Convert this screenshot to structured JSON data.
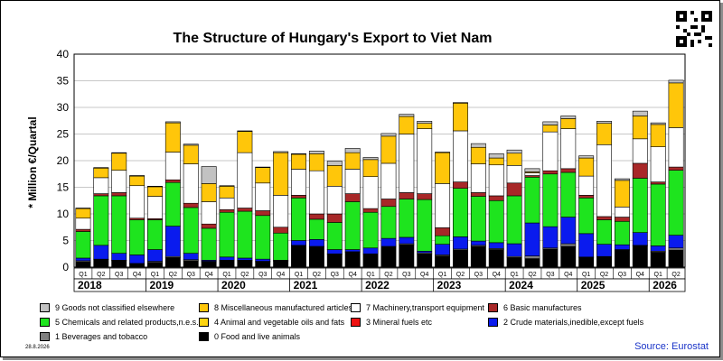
{
  "title": "The Structure of Hungary's Export to Viet Nam",
  "date_stamp": "28.8.2026",
  "source": "Source: Eurostat",
  "chart_data": {
    "type": "bar",
    "stacked": true,
    "title": "The Structure of Hungary's Export to Viet Nam",
    "ylabel": "* Million €/Quartal",
    "ylim": [
      0,
      40
    ],
    "yticks": [
      "0",
      "5",
      "10",
      "15",
      "20",
      "25",
      "30",
      "35",
      "40"
    ],
    "grid": true,
    "legend_position": "bottom",
    "quarter_labels": [
      "Q1",
      "Q2",
      "Q3",
      "Q4",
      "Q1",
      "Q2",
      "Q3",
      "Q4",
      "Q1",
      "Q2",
      "Q3",
      "Q4",
      "Q1",
      "Q2",
      "Q3",
      "Q4",
      "Q1",
      "Q2",
      "Q3",
      "Q4",
      "Q1",
      "Q2",
      "Q3",
      "Q4",
      "Q1",
      "Q2",
      "Q3",
      "Q4",
      "Q1",
      "Q2",
      "Q3",
      "Q4",
      "Q1",
      "Q2"
    ],
    "years": [
      {
        "label": "2018",
        "quarters": 4
      },
      {
        "label": "2019",
        "quarters": 4
      },
      {
        "label": "2020",
        "quarters": 4
      },
      {
        "label": "2021",
        "quarters": 4
      },
      {
        "label": "2022",
        "quarters": 4
      },
      {
        "label": "2023",
        "quarters": 4
      },
      {
        "label": "2024",
        "quarters": 4
      },
      {
        "label": "2025",
        "quarters": 4
      },
      {
        "label": "2026",
        "quarters": 2
      }
    ],
    "series": [
      {
        "name": "0 Food and live animals",
        "color": "#000000",
        "values": [
          1.0,
          1.4,
          1.2,
          0.6,
          0.9,
          1.8,
          1.2,
          1.0,
          1.2,
          1.2,
          1.0,
          1.1,
          4.0,
          3.8,
          2.4,
          2.8,
          2.4,
          3.8,
          4.2,
          2.5,
          2.1,
          3.2,
          3.9,
          3.3,
          1.8,
          1.6,
          3.4,
          3.9,
          1.8,
          1.9,
          3.2,
          4.0,
          2.8,
          3.2
        ]
      },
      {
        "name": "1 Beverages and tobacco",
        "color": "#7f7f7f",
        "values": [
          0.2,
          0.1,
          0.1,
          0.1,
          0.2,
          0.2,
          0.2,
          0.1,
          0.1,
          0.1,
          0.1,
          0.1,
          0.1,
          0.1,
          0.1,
          0.1,
          0.1,
          0.1,
          0.2,
          0.2,
          0.2,
          0.2,
          0.2,
          0.2,
          0.2,
          0.5,
          0.2,
          0.5,
          0.1,
          0.1,
          0.1,
          0.1,
          0.2,
          0.4
        ]
      },
      {
        "name": "2 Crude materials,inedible,except fuels",
        "color": "#0a1bee",
        "values": [
          0.5,
          2.6,
          1.3,
          1.6,
          2.2,
          5.7,
          1.2,
          0.2,
          0.6,
          0.4,
          0.4,
          0.1,
          0.9,
          1.3,
          0.8,
          0.4,
          1.1,
          1.5,
          1.2,
          0.3,
          2.0,
          2.3,
          0.8,
          1.1,
          2.4,
          6.2,
          4.0,
          5.0,
          4.4,
          2.3,
          0.9,
          2.4,
          1.0,
          2.4
        ]
      },
      {
        "name": "3 Mineral fuels etc",
        "color": "#ee1010",
        "values": [
          0,
          0,
          0,
          0,
          0,
          0,
          0,
          0,
          0,
          0,
          0,
          0,
          0,
          0,
          0,
          0,
          0,
          0,
          0,
          0,
          0,
          0,
          0,
          0,
          0,
          0,
          0,
          0,
          0,
          0,
          0,
          0,
          0,
          0
        ]
      },
      {
        "name": "4 Animal and vegetable oils and fats",
        "color": "#ffd510",
        "values": [
          0,
          0,
          0,
          0,
          0,
          0,
          0,
          0,
          0,
          0,
          0,
          0,
          0,
          0,
          0,
          0,
          0,
          0,
          0,
          0,
          0,
          0,
          0,
          0,
          0,
          0,
          0,
          0,
          0,
          0,
          0,
          0,
          0,
          0
        ]
      },
      {
        "name": "5 Chemicals and related products,n.e.s.",
        "color": "#1ee41e",
        "values": [
          5.0,
          9.3,
          10.8,
          6.6,
          5.6,
          8.2,
          8.6,
          6.0,
          8.4,
          8.8,
          8.2,
          5.1,
          8.0,
          3.8,
          5.1,
          9.0,
          6.7,
          6.0,
          7.2,
          9.7,
          1.6,
          9.1,
          8.4,
          7.9,
          9.0,
          8.6,
          9.9,
          8.4,
          6.7,
          4.6,
          4.4,
          10.2,
          11.6,
          12.2
        ]
      },
      {
        "name": "6 Basic manufactures",
        "color": "#a82828",
        "values": [
          0.4,
          0.4,
          0.6,
          0.3,
          0.2,
          0.5,
          0.8,
          0.8,
          0.5,
          0.6,
          0.9,
          1.1,
          0.5,
          1.0,
          1.6,
          1.5,
          0.7,
          1.4,
          1.2,
          1.1,
          1.5,
          1.2,
          0.7,
          0.9,
          2.4,
          0.3,
          0.6,
          0.7,
          0.5,
          0.6,
          0.8,
          2.8,
          0.4,
          0.6
        ]
      },
      {
        "name": "7 Machinery,transport equipment",
        "color": "#ffffff",
        "values": [
          2.1,
          3.0,
          4.2,
          6.1,
          4.2,
          5.2,
          7.4,
          4.2,
          2.2,
          10.4,
          5.2,
          6.0,
          4.9,
          8.1,
          5.2,
          4.6,
          6.0,
          6.7,
          11.0,
          12.2,
          8.3,
          9.6,
          5.4,
          5.8,
          3.3,
          0.5,
          7.3,
          7.5,
          3.6,
          13.5,
          1.9,
          4.6,
          6.6,
          7.4
        ]
      },
      {
        "name": "8 Miscellaneous manufactured articles",
        "color": "#ffc60a",
        "values": [
          1.8,
          1.8,
          3.2,
          1.8,
          1.8,
          5.5,
          3.5,
          3.4,
          2.2,
          4.0,
          2.9,
          8.0,
          2.8,
          3.2,
          3.9,
          3.1,
          3.2,
          5.1,
          3.3,
          1.0,
          5.8,
          5.2,
          3.1,
          1.3,
          2.3,
          0.2,
          1.3,
          1.9,
          3.4,
          4.0,
          5.0,
          4.3,
          4.2,
          8.4
        ]
      },
      {
        "name": "9 Goods not classified elsewhere",
        "color": "#c2c2c2",
        "values": [
          0.1,
          0.1,
          0.1,
          0.1,
          0.1,
          0.2,
          0.2,
          3.2,
          0.1,
          0.1,
          0.1,
          0.2,
          0.1,
          0.5,
          0.8,
          0.8,
          0.4,
          0.5,
          0.4,
          0.4,
          0.1,
          0.1,
          0.7,
          0.8,
          0.6,
          0.6,
          0.6,
          0.5,
          0.4,
          0.4,
          0.3,
          0.9,
          0.3,
          0.5
        ]
      }
    ]
  }
}
